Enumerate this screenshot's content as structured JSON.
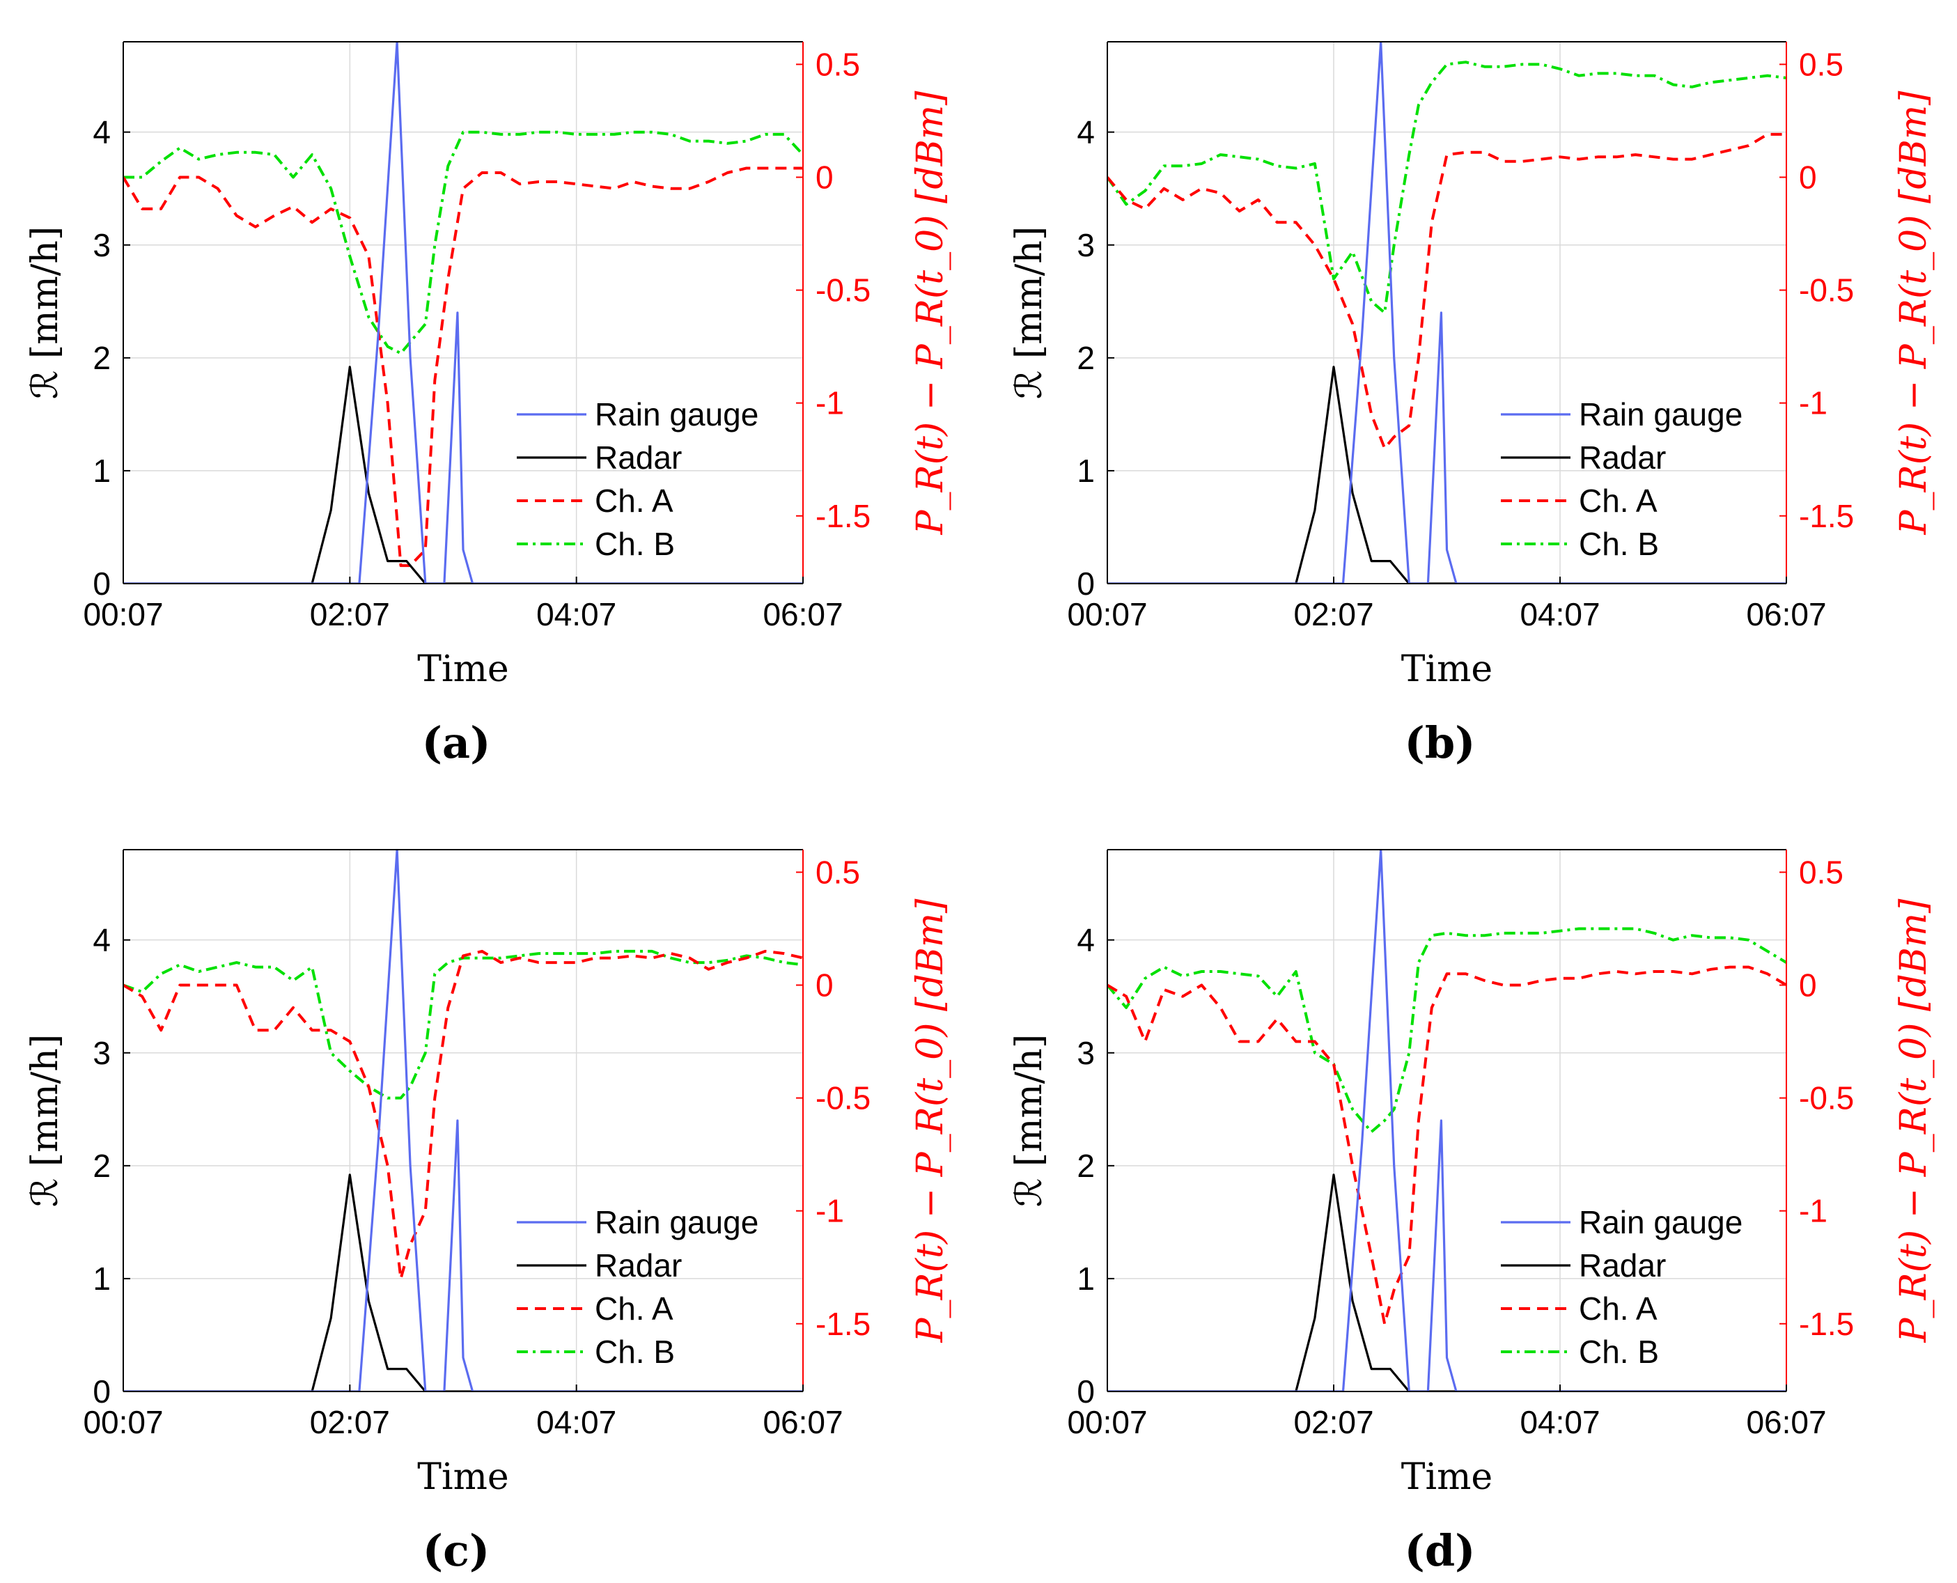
{
  "axis_text": {
    "xlabel": "Time",
    "ylabel_left": "ℛ [mm/h]",
    "ylabel_right": "P_R(t) − P_R(t_0) [dBm]"
  },
  "colors": {
    "rain_gauge": "#5B6CF0",
    "radar": "#000000",
    "ch_a": "#FF0000",
    "ch_b": "#00E000",
    "right_axis": "#FF0000",
    "grid": "#DADADA"
  },
  "chart_data": [
    {
      "panel_label": "(a)",
      "type": "line",
      "xlabel": "Time",
      "ylabel_left": "ℛ [mm/h]",
      "ylabel_right": "P_R(t) − P_R(t_0) [dBm]",
      "x_ticks": [
        "00:07",
        "02:07",
        "04:07",
        "06:07"
      ],
      "x_range_minutes": [
        0,
        360
      ],
      "y_left_ticks": [
        0,
        1,
        2,
        3,
        4
      ],
      "y_left_range": [
        0,
        4.8
      ],
      "y_right_ticks": [
        "0.5",
        "0",
        "-0.5",
        "-1",
        "-1.5"
      ],
      "y_right_range": [
        -1.8,
        0.6
      ],
      "grid": true,
      "legend_position": "bottom-right",
      "series": [
        {
          "name": "Rain gauge",
          "axis": "left",
          "style": "solid",
          "x": [
            0,
            100,
            125,
            135,
            145,
            152,
            160,
            162,
            170,
            177,
            180,
            185,
            360
          ],
          "y": [
            0,
            0,
            0,
            2.2,
            4.8,
            2.0,
            0,
            0,
            0,
            2.4,
            0.3,
            0,
            0
          ]
        },
        {
          "name": "Radar",
          "axis": "left",
          "style": "solid",
          "x": [
            0,
            100,
            110,
            120,
            130,
            140,
            145,
            150,
            160,
            360
          ],
          "y": [
            0,
            0,
            0.65,
            1.92,
            0.8,
            0.2,
            0.2,
            0.2,
            0,
            0
          ]
        },
        {
          "name": "Ch. A",
          "axis": "right",
          "style": "dashed",
          "x": [
            0,
            10,
            20,
            30,
            40,
            50,
            60,
            70,
            80,
            90,
            100,
            110,
            120,
            130,
            140,
            147,
            152,
            160,
            165,
            172,
            180,
            190,
            200,
            210,
            220,
            230,
            240,
            250,
            260,
            270,
            280,
            290,
            300,
            310,
            320,
            330,
            340,
            350,
            360
          ],
          "y": [
            0,
            -0.14,
            -0.14,
            0,
            0,
            -0.05,
            -0.17,
            -0.22,
            -0.17,
            -0.13,
            -0.2,
            -0.14,
            -0.18,
            -0.35,
            -1.0,
            -1.72,
            -1.72,
            -1.65,
            -0.9,
            -0.45,
            -0.05,
            0.02,
            0.02,
            -0.03,
            -0.02,
            -0.02,
            -0.03,
            -0.04,
            -0.05,
            -0.02,
            -0.04,
            -0.05,
            -0.05,
            -0.02,
            0.02,
            0.04,
            0.04,
            0.04,
            0.04
          ]
        },
        {
          "name": "Ch. B",
          "axis": "right",
          "style": "dashdot",
          "x": [
            0,
            10,
            20,
            30,
            40,
            50,
            60,
            70,
            80,
            90,
            100,
            110,
            120,
            130,
            140,
            147,
            152,
            160,
            165,
            172,
            180,
            190,
            200,
            210,
            220,
            230,
            240,
            250,
            260,
            270,
            280,
            290,
            300,
            310,
            320,
            330,
            340,
            350,
            360
          ],
          "y": [
            0,
            0,
            0.07,
            0.13,
            0.08,
            0.1,
            0.11,
            0.11,
            0.1,
            0.0,
            0.1,
            -0.05,
            -0.35,
            -0.62,
            -0.75,
            -0.78,
            -0.73,
            -0.65,
            -0.3,
            0.05,
            0.2,
            0.2,
            0.19,
            0.19,
            0.2,
            0.2,
            0.19,
            0.19,
            0.19,
            0.2,
            0.2,
            0.19,
            0.16,
            0.16,
            0.15,
            0.16,
            0.19,
            0.19,
            0.1
          ]
        }
      ]
    },
    {
      "panel_label": "(b)",
      "type": "line",
      "xlabel": "Time",
      "ylabel_left": "ℛ [mm/h]",
      "ylabel_right": "P_R(t) − P_R(t_0) [dBm]",
      "x_ticks": [
        "00:07",
        "02:07",
        "04:07",
        "06:07"
      ],
      "x_range_minutes": [
        0,
        360
      ],
      "y_left_ticks": [
        0,
        1,
        2,
        3,
        4
      ],
      "y_left_range": [
        0,
        4.8
      ],
      "y_right_ticks": [
        "0.5",
        "0",
        "-0.5",
        "-1",
        "-1.5"
      ],
      "y_right_range": [
        -1.8,
        0.6
      ],
      "grid": true,
      "legend_position": "bottom-right",
      "series": [
        {
          "name": "Rain gauge",
          "axis": "left",
          "style": "solid",
          "x": [
            0,
            100,
            125,
            135,
            145,
            152,
            160,
            162,
            170,
            177,
            180,
            185,
            360
          ],
          "y": [
            0,
            0,
            0,
            2.2,
            4.8,
            2.0,
            0,
            0,
            0,
            2.4,
            0.3,
            0,
            0
          ]
        },
        {
          "name": "Radar",
          "axis": "left",
          "style": "solid",
          "x": [
            0,
            100,
            110,
            120,
            130,
            140,
            145,
            150,
            160,
            360
          ],
          "y": [
            0,
            0,
            0.65,
            1.92,
            0.8,
            0.2,
            0.2,
            0.2,
            0,
            0
          ]
        },
        {
          "name": "Ch. A",
          "axis": "right",
          "style": "dashed",
          "x": [
            0,
            10,
            20,
            30,
            40,
            50,
            60,
            70,
            80,
            90,
            100,
            110,
            120,
            130,
            140,
            147,
            152,
            160,
            165,
            172,
            180,
            190,
            200,
            210,
            220,
            230,
            240,
            250,
            260,
            270,
            280,
            290,
            300,
            310,
            320,
            330,
            340,
            350,
            360
          ],
          "y": [
            0,
            -0.1,
            -0.14,
            -0.05,
            -0.1,
            -0.05,
            -0.07,
            -0.15,
            -0.1,
            -0.2,
            -0.2,
            -0.3,
            -0.45,
            -0.65,
            -1.05,
            -1.2,
            -1.15,
            -1.1,
            -0.8,
            -0.2,
            0.1,
            0.11,
            0.11,
            0.07,
            0.07,
            0.08,
            0.09,
            0.08,
            0.09,
            0.09,
            0.1,
            0.09,
            0.08,
            0.08,
            0.1,
            0.12,
            0.14,
            0.19,
            0.19
          ]
        },
        {
          "name": "Ch. B",
          "axis": "right",
          "style": "dashdot",
          "x": [
            0,
            10,
            20,
            30,
            40,
            50,
            60,
            70,
            80,
            90,
            100,
            110,
            120,
            130,
            140,
            147,
            152,
            160,
            165,
            172,
            180,
            190,
            200,
            210,
            220,
            230,
            240,
            250,
            260,
            270,
            280,
            290,
            300,
            310,
            320,
            330,
            340,
            350,
            360
          ],
          "y": [
            0,
            -0.12,
            -0.06,
            0.05,
            0.05,
            0.06,
            0.1,
            0.09,
            0.08,
            0.05,
            0.04,
            0.06,
            -0.45,
            -0.33,
            -0.55,
            -0.6,
            -0.3,
            0.1,
            0.32,
            0.42,
            0.5,
            0.51,
            0.49,
            0.49,
            0.5,
            0.5,
            0.48,
            0.45,
            0.46,
            0.46,
            0.45,
            0.45,
            0.41,
            0.4,
            0.42,
            0.43,
            0.44,
            0.45,
            0.44
          ]
        }
      ]
    },
    {
      "panel_label": "(c)",
      "type": "line",
      "xlabel": "Time",
      "ylabel_left": "ℛ [mm/h]",
      "ylabel_right": "P_R(t) − P_R(t_0) [dBm]",
      "x_ticks": [
        "00:07",
        "02:07",
        "04:07",
        "06:07"
      ],
      "x_range_minutes": [
        0,
        360
      ],
      "y_left_ticks": [
        0,
        1,
        2,
        3,
        4
      ],
      "y_left_range": [
        0,
        4.8
      ],
      "y_right_ticks": [
        "0.5",
        "0",
        "-0.5",
        "-1",
        "-1.5"
      ],
      "y_right_range": [
        -1.8,
        0.6
      ],
      "grid": true,
      "legend_position": "bottom-right",
      "series": [
        {
          "name": "Rain gauge",
          "axis": "left",
          "style": "solid",
          "x": [
            0,
            100,
            125,
            135,
            145,
            152,
            160,
            162,
            170,
            177,
            180,
            185,
            360
          ],
          "y": [
            0,
            0,
            0,
            2.2,
            4.8,
            2.0,
            0,
            0,
            0,
            2.4,
            0.3,
            0,
            0
          ]
        },
        {
          "name": "Radar",
          "axis": "left",
          "style": "solid",
          "x": [
            0,
            100,
            110,
            120,
            130,
            140,
            145,
            150,
            160,
            360
          ],
          "y": [
            0,
            0,
            0.65,
            1.92,
            0.8,
            0.2,
            0.2,
            0.2,
            0,
            0
          ]
        },
        {
          "name": "Ch. A",
          "axis": "right",
          "style": "dashed",
          "x": [
            0,
            10,
            20,
            30,
            40,
            50,
            60,
            70,
            80,
            90,
            100,
            110,
            120,
            130,
            140,
            147,
            152,
            160,
            165,
            172,
            180,
            190,
            200,
            210,
            220,
            230,
            240,
            250,
            260,
            270,
            280,
            290,
            300,
            310,
            320,
            330,
            340,
            350,
            360
          ],
          "y": [
            0,
            -0.05,
            -0.2,
            0,
            0,
            0,
            0,
            -0.2,
            -0.2,
            -0.1,
            -0.2,
            -0.2,
            -0.25,
            -0.45,
            -0.8,
            -1.3,
            -1.15,
            -1.0,
            -0.5,
            -0.1,
            0.13,
            0.15,
            0.1,
            0.12,
            0.1,
            0.1,
            0.1,
            0.12,
            0.12,
            0.13,
            0.12,
            0.14,
            0.12,
            0.07,
            0.1,
            0.12,
            0.15,
            0.14,
            0.12
          ]
        },
        {
          "name": "Ch. B",
          "axis": "right",
          "style": "dashdot",
          "x": [
            0,
            10,
            20,
            30,
            40,
            50,
            60,
            70,
            80,
            90,
            100,
            110,
            120,
            130,
            140,
            147,
            152,
            160,
            165,
            172,
            180,
            190,
            200,
            210,
            220,
            230,
            240,
            250,
            260,
            270,
            280,
            290,
            300,
            310,
            320,
            330,
            340,
            350,
            360
          ],
          "y": [
            0,
            -0.03,
            0.05,
            0.09,
            0.06,
            0.08,
            0.1,
            0.08,
            0.08,
            0.02,
            0.08,
            -0.3,
            -0.38,
            -0.45,
            -0.5,
            -0.5,
            -0.45,
            -0.3,
            0.05,
            0.1,
            0.12,
            0.12,
            0.12,
            0.13,
            0.14,
            0.14,
            0.14,
            0.14,
            0.15,
            0.15,
            0.15,
            0.12,
            0.1,
            0.1,
            0.11,
            0.13,
            0.12,
            0.1,
            0.09
          ]
        }
      ]
    },
    {
      "panel_label": "(d)",
      "type": "line",
      "xlabel": "Time",
      "ylabel_left": "ℛ [mm/h]",
      "ylabel_right": "P_R(t) − P_R(t_0) [dBm]",
      "x_ticks": [
        "00:07",
        "02:07",
        "04:07",
        "06:07"
      ],
      "x_range_minutes": [
        0,
        360
      ],
      "y_left_ticks": [
        0,
        1,
        2,
        3,
        4
      ],
      "y_left_range": [
        0,
        4.8
      ],
      "y_right_ticks": [
        "0.5",
        "0",
        "-0.5",
        "-1",
        "-1.5"
      ],
      "y_right_range": [
        -1.8,
        0.6
      ],
      "grid": true,
      "legend_position": "bottom-right",
      "series": [
        {
          "name": "Rain gauge",
          "axis": "left",
          "style": "solid",
          "x": [
            0,
            100,
            125,
            135,
            145,
            152,
            160,
            162,
            170,
            177,
            180,
            185,
            360
          ],
          "y": [
            0,
            0,
            0,
            2.2,
            4.8,
            2.0,
            0,
            0,
            0,
            2.4,
            0.3,
            0,
            0
          ]
        },
        {
          "name": "Radar",
          "axis": "left",
          "style": "solid",
          "x": [
            0,
            100,
            110,
            120,
            130,
            140,
            145,
            150,
            160,
            360
          ],
          "y": [
            0,
            0,
            0.65,
            1.92,
            0.8,
            0.2,
            0.2,
            0.2,
            0,
            0
          ]
        },
        {
          "name": "Ch. A",
          "axis": "right",
          "style": "dashed",
          "x": [
            0,
            10,
            20,
            30,
            40,
            50,
            60,
            70,
            80,
            90,
            100,
            110,
            120,
            130,
            140,
            147,
            152,
            160,
            165,
            172,
            180,
            190,
            200,
            210,
            220,
            230,
            240,
            250,
            260,
            270,
            280,
            290,
            300,
            310,
            320,
            330,
            340,
            350,
            360
          ],
          "y": [
            0,
            -0.05,
            -0.25,
            -0.02,
            -0.05,
            0,
            -0.1,
            -0.25,
            -0.25,
            -0.15,
            -0.25,
            -0.25,
            -0.35,
            -0.8,
            -1.2,
            -1.5,
            -1.35,
            -1.2,
            -0.6,
            -0.1,
            0.05,
            0.05,
            0.02,
            0,
            0,
            0.02,
            0.03,
            0.03,
            0.05,
            0.06,
            0.05,
            0.06,
            0.06,
            0.05,
            0.07,
            0.08,
            0.08,
            0.05,
            0.0
          ]
        },
        {
          "name": "Ch. B",
          "axis": "right",
          "style": "dashdot",
          "x": [
            0,
            10,
            20,
            30,
            40,
            50,
            60,
            70,
            80,
            90,
            100,
            110,
            120,
            130,
            140,
            147,
            152,
            160,
            165,
            172,
            180,
            190,
            200,
            210,
            220,
            230,
            240,
            250,
            260,
            270,
            280,
            290,
            300,
            310,
            320,
            330,
            340,
            350,
            360
          ],
          "y": [
            0,
            -0.1,
            0.03,
            0.08,
            0.04,
            0.06,
            0.06,
            0.05,
            0.04,
            -0.05,
            0.06,
            -0.3,
            -0.35,
            -0.55,
            -0.65,
            -0.6,
            -0.55,
            -0.3,
            0.1,
            0.22,
            0.23,
            0.22,
            0.22,
            0.23,
            0.23,
            0.23,
            0.24,
            0.25,
            0.25,
            0.25,
            0.25,
            0.23,
            0.2,
            0.22,
            0.21,
            0.21,
            0.2,
            0.15,
            0.1
          ]
        }
      ]
    }
  ]
}
